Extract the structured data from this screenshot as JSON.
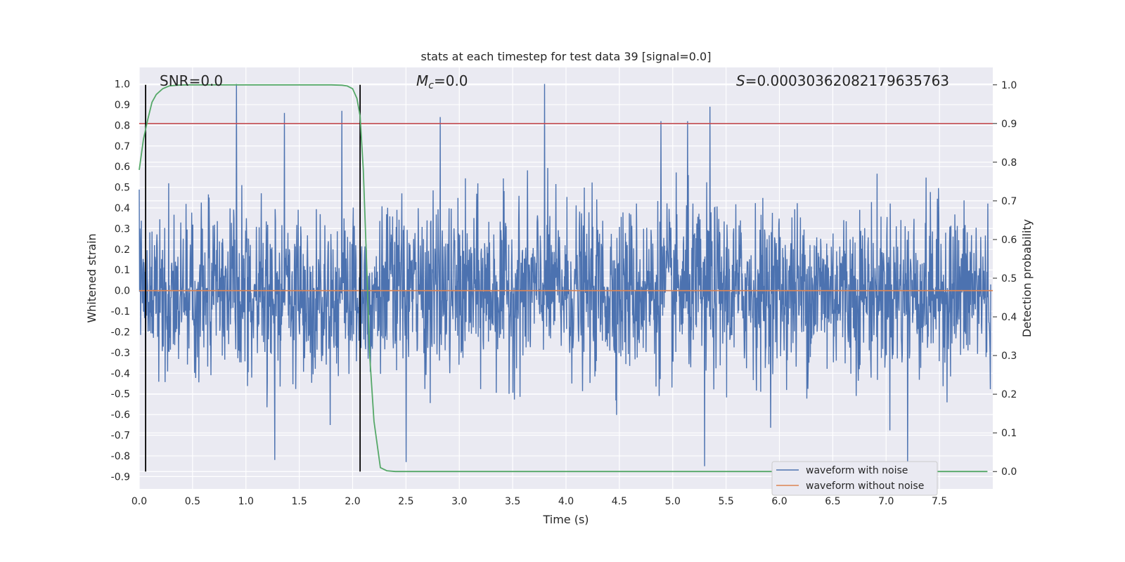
{
  "chart_data": {
    "type": "line",
    "title": "stats at each timestep for test data 39 [signal=0.0]",
    "xlabel": "Time (s)",
    "ylabel": "Whitened strain",
    "y2label": "Detection probability",
    "xlim": [
      0.0,
      8.0
    ],
    "ylim": [
      -0.96,
      1.08
    ],
    "y2lim": [
      -0.045,
      1.045
    ],
    "x_ticks": [
      "0.0",
      "0.5",
      "1.0",
      "1.5",
      "2.0",
      "2.5",
      "3.0",
      "3.5",
      "4.0",
      "4.5",
      "5.0",
      "5.5",
      "6.0",
      "6.5",
      "7.0",
      "7.5"
    ],
    "y_ticks": [
      "1.0",
      "0.9",
      "0.8",
      "0.7",
      "0.6",
      "0.5",
      "0.4",
      "0.3",
      "0.2",
      "0.1",
      "0.0",
      "-0.1",
      "-0.2",
      "-0.3",
      "-0.4",
      "-0.5",
      "-0.6",
      "-0.7",
      "-0.8",
      "-0.9"
    ],
    "y2_ticks": [
      "1.0",
      "0.9",
      "0.8",
      "0.7",
      "0.6",
      "0.5",
      "0.4",
      "0.3",
      "0.2",
      "0.1",
      "0.0"
    ],
    "annotations": {
      "snr_prefix": "SNR",
      "snr_value": "=0.0",
      "mc_symbol": "M",
      "mc_sub": "c",
      "mc_value": "=0.0",
      "s_symbol": "S",
      "s_value": "=0.000303620821796357​63"
    },
    "threshold": 0.9,
    "vlines_x": [
      0.06,
      2.07
    ],
    "legend": {
      "placement": "bottom-right",
      "entries": [
        "waveform with noise",
        "waveform without noise"
      ]
    },
    "series": [
      {
        "name": "waveform with noise",
        "color": "#4c72b0",
        "axis": "left",
        "description_values": "dense noise, bulk within ±0.3, peaks up to 1.0 and down to -0.85",
        "peaks": [
          {
            "x": 0.91,
            "y": 1.0
          },
          {
            "x": 3.8,
            "y": 1.0
          },
          {
            "x": 5.35,
            "y": 0.89
          },
          {
            "x": 2.82,
            "y": 0.84
          },
          {
            "x": 1.36,
            "y": 0.86
          },
          {
            "x": 1.9,
            "y": 0.87
          },
          {
            "x": 5.14,
            "y": 0.82
          },
          {
            "x": 4.89,
            "y": 0.82
          },
          {
            "x": 1.27,
            "y": -0.82
          },
          {
            "x": 5.3,
            "y": -0.85
          },
          {
            "x": 7.2,
            "y": -0.85
          },
          {
            "x": 2.5,
            "y": -0.83
          }
        ]
      },
      {
        "name": "waveform without noise",
        "color": "#dd8452",
        "axis": "left",
        "x": [
          0.0,
          8.0
        ],
        "values": [
          0.0,
          0.0
        ]
      },
      {
        "name": "detection probability",
        "color": "#55a868",
        "axis": "right",
        "x": [
          0.0,
          0.04,
          0.08,
          0.12,
          0.16,
          0.22,
          0.28,
          0.35,
          0.45,
          0.6,
          0.8,
          1.0,
          1.2,
          1.4,
          1.6,
          1.8,
          1.9,
          1.95,
          2.0,
          2.04,
          2.07,
          2.1,
          2.13,
          2.16,
          2.2,
          2.26,
          2.32,
          2.4,
          2.6,
          3.0,
          4.0,
          5.0,
          6.0,
          7.0,
          7.95
        ],
        "values": [
          0.78,
          0.86,
          0.91,
          0.955,
          0.975,
          0.99,
          0.997,
          0.999,
          1.0,
          1.0,
          1.0,
          1.0,
          1.0,
          1.0,
          1.0,
          1.0,
          0.999,
          0.997,
          0.99,
          0.965,
          0.92,
          0.78,
          0.55,
          0.3,
          0.13,
          0.01,
          0.002,
          0.0,
          0.0,
          0.0,
          0.0,
          0.0,
          0.0,
          0.0,
          0.0
        ]
      }
    ],
    "colors": {
      "background": "#eaeaf2",
      "grid": "#ffffff",
      "threshold": "#c44e52",
      "vline": "#000000"
    }
  }
}
